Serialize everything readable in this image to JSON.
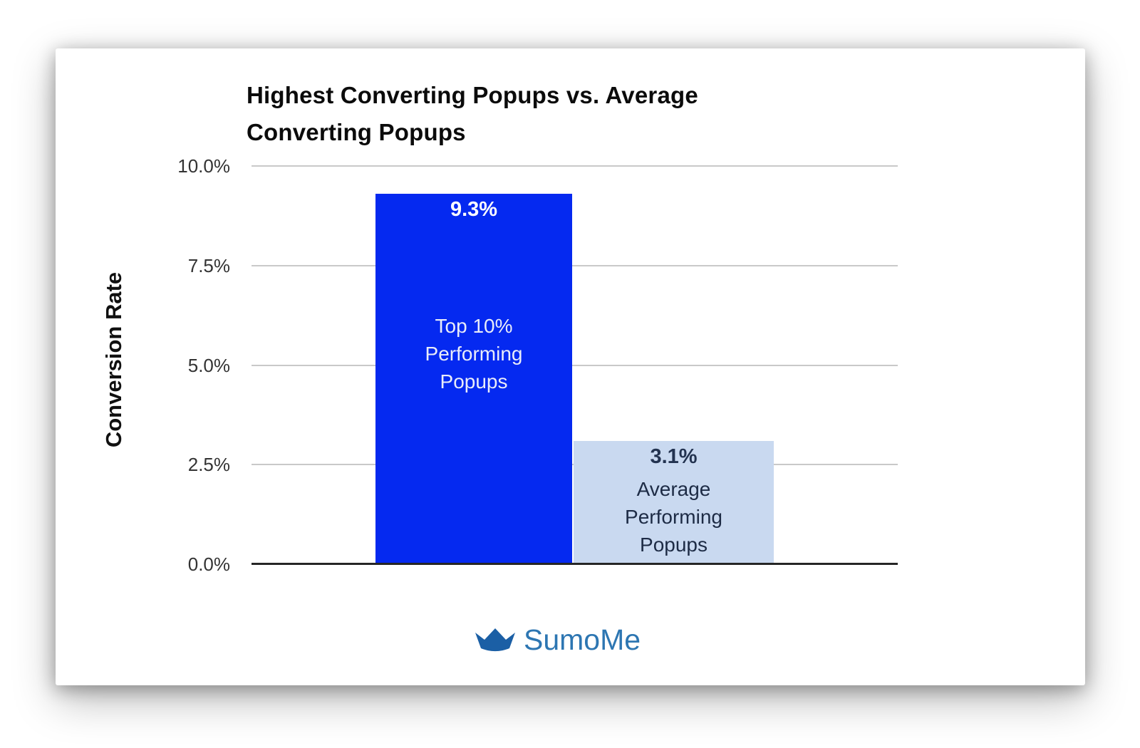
{
  "chart_data": {
    "type": "bar",
    "title": "Highest Converting Popups vs. Average Converting Popups",
    "xlabel": "",
    "ylabel": "Conversion Rate",
    "ylim": [
      0,
      10
    ],
    "grid": true,
    "legend": "none",
    "categories": [
      "Top 10% Performing Popups",
      "Average Performing Popups"
    ],
    "values": [
      9.3,
      3.1
    ],
    "y_ticks": [
      {
        "label": "10.0%",
        "value": 10
      },
      {
        "label": "7.5%",
        "value": 7.5
      },
      {
        "label": "5.0%",
        "value": 5
      },
      {
        "label": "2.5%",
        "value": 2.5
      },
      {
        "label": "0.0%",
        "value": 0
      }
    ],
    "bars": [
      {
        "name": "top-10-performing-popups",
        "value": 9.3,
        "value_label": "9.3%",
        "category_lines": [
          "Top 10%",
          "Performing",
          "Popups"
        ],
        "color": "#0529f0",
        "value_label_color": "#ffffff",
        "category_label_color": "#e9ecf9"
      },
      {
        "name": "average-performing-popups",
        "value": 3.1,
        "value_label": "3.1%",
        "category_lines": [
          "Average",
          "Performing",
          "Popups"
        ],
        "color": "#c9d9f0",
        "value_label_color": "#233350",
        "category_label_color": "#1d2b45"
      }
    ]
  },
  "branding": {
    "logo_text": "SumoMe",
    "crown_color": "#1b5fa5",
    "logo_text_color": "#2d76b2"
  }
}
